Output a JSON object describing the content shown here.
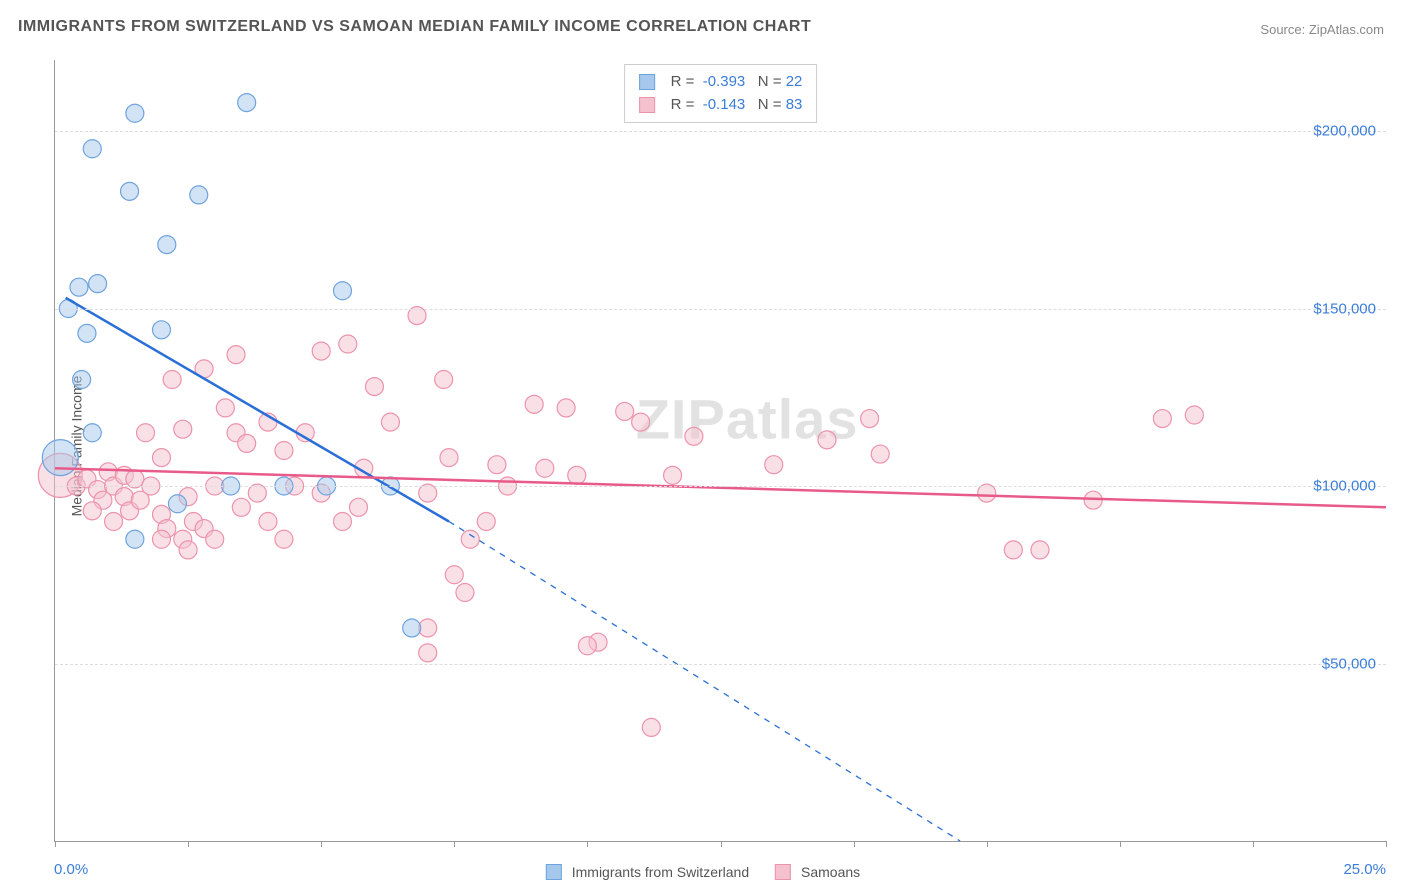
{
  "title": "IMMIGRANTS FROM SWITZERLAND VS SAMOAN MEDIAN FAMILY INCOME CORRELATION CHART",
  "source_label": "Source:",
  "source_name": "ZipAtlas.com",
  "ylabel": "Median Family Income",
  "watermark": "ZIPatlas",
  "chart": {
    "type": "scatter-correlation",
    "xlim": [
      0,
      25
    ],
    "ylim": [
      0,
      220000
    ],
    "x_start_label": "0.0%",
    "x_end_label": "25.0%",
    "y_ticks": [
      50000,
      100000,
      150000,
      200000
    ],
    "y_tick_labels": [
      "$50,000",
      "$100,000",
      "$150,000",
      "$200,000"
    ],
    "x_tick_positions": [
      0,
      2.5,
      5,
      7.5,
      10,
      12.5,
      15,
      17.5,
      20,
      22.5,
      25
    ],
    "grid_color": "#dddddd",
    "axis_color": "#999999",
    "background_color": "#ffffff",
    "tick_label_color": "#3b7dd8",
    "marker_radius": 9,
    "marker_opacity": 0.5,
    "line_width": 2.5
  },
  "series": [
    {
      "name": "Immigrants from Switzerland",
      "fill_color": "#a6c8ec",
      "stroke_color": "#6ea3de",
      "line_color": "#2a6fd6",
      "R": "-0.393",
      "N": "22",
      "trend": {
        "x1": 0.2,
        "y1": 153000,
        "x2": 7.4,
        "y2": 90000,
        "dash_to_x": 17.0,
        "dash_to_y": 0
      },
      "points": [
        {
          "x": 1.5,
          "y": 205000
        },
        {
          "x": 0.7,
          "y": 195000
        },
        {
          "x": 3.6,
          "y": 208000
        },
        {
          "x": 1.4,
          "y": 183000
        },
        {
          "x": 2.7,
          "y": 182000
        },
        {
          "x": 2.1,
          "y": 168000
        },
        {
          "x": 0.45,
          "y": 156000
        },
        {
          "x": 0.8,
          "y": 157000
        },
        {
          "x": 0.25,
          "y": 150000
        },
        {
          "x": 0.6,
          "y": 143000
        },
        {
          "x": 2.0,
          "y": 144000
        },
        {
          "x": 5.4,
          "y": 155000
        },
        {
          "x": 0.5,
          "y": 130000
        },
        {
          "x": 0.7,
          "y": 115000
        },
        {
          "x": 0.1,
          "y": 108000,
          "r": 18
        },
        {
          "x": 2.3,
          "y": 95000
        },
        {
          "x": 1.5,
          "y": 85000
        },
        {
          "x": 3.3,
          "y": 100000
        },
        {
          "x": 4.3,
          "y": 100000
        },
        {
          "x": 5.1,
          "y": 100000
        },
        {
          "x": 6.3,
          "y": 100000
        },
        {
          "x": 6.7,
          "y": 60000
        }
      ]
    },
    {
      "name": "Samoans",
      "fill_color": "#f4c2cf",
      "stroke_color": "#ec93ab",
      "line_color": "#e85a8a",
      "R": "-0.143",
      "N": "83",
      "trend": {
        "x1": 0,
        "y1": 105000,
        "x2": 25,
        "y2": 94000
      },
      "points": [
        {
          "x": 0.1,
          "y": 103000,
          "r": 22
        },
        {
          "x": 0.4,
          "y": 100000
        },
        {
          "x": 0.6,
          "y": 102000
        },
        {
          "x": 0.8,
          "y": 99000
        },
        {
          "x": 1.0,
          "y": 104000
        },
        {
          "x": 0.9,
          "y": 96000
        },
        {
          "x": 1.1,
          "y": 100000
        },
        {
          "x": 1.3,
          "y": 97000
        },
        {
          "x": 1.4,
          "y": 93000
        },
        {
          "x": 1.1,
          "y": 90000
        },
        {
          "x": 1.3,
          "y": 103000
        },
        {
          "x": 0.7,
          "y": 93000
        },
        {
          "x": 1.6,
          "y": 96000
        },
        {
          "x": 1.7,
          "y": 115000
        },
        {
          "x": 2.0,
          "y": 92000
        },
        {
          "x": 2.1,
          "y": 88000
        },
        {
          "x": 2.4,
          "y": 116000
        },
        {
          "x": 2.0,
          "y": 108000
        },
        {
          "x": 2.2,
          "y": 130000
        },
        {
          "x": 2.8,
          "y": 133000
        },
        {
          "x": 3.0,
          "y": 100000
        },
        {
          "x": 2.6,
          "y": 90000
        },
        {
          "x": 2.8,
          "y": 88000
        },
        {
          "x": 2.5,
          "y": 97000
        },
        {
          "x": 2.4,
          "y": 85000
        },
        {
          "x": 2.0,
          "y": 85000
        },
        {
          "x": 3.2,
          "y": 122000
        },
        {
          "x": 3.4,
          "y": 115000
        },
        {
          "x": 3.5,
          "y": 94000
        },
        {
          "x": 3.6,
          "y": 112000
        },
        {
          "x": 3.4,
          "y": 137000
        },
        {
          "x": 4.0,
          "y": 118000
        },
        {
          "x": 3.8,
          "y": 98000
        },
        {
          "x": 4.0,
          "y": 90000
        },
        {
          "x": 4.3,
          "y": 85000
        },
        {
          "x": 4.3,
          "y": 110000
        },
        {
          "x": 4.7,
          "y": 115000
        },
        {
          "x": 5.0,
          "y": 138000
        },
        {
          "x": 5.5,
          "y": 140000
        },
        {
          "x": 5.0,
          "y": 98000
        },
        {
          "x": 5.4,
          "y": 90000
        },
        {
          "x": 5.7,
          "y": 94000
        },
        {
          "x": 6.0,
          "y": 128000
        },
        {
          "x": 6.3,
          "y": 118000
        },
        {
          "x": 6.8,
          "y": 148000
        },
        {
          "x": 7.0,
          "y": 98000
        },
        {
          "x": 7.0,
          "y": 60000
        },
        {
          "x": 7.4,
          "y": 108000
        },
        {
          "x": 7.3,
          "y": 130000
        },
        {
          "x": 7.8,
          "y": 85000
        },
        {
          "x": 7.5,
          "y": 75000
        },
        {
          "x": 7.0,
          "y": 53000
        },
        {
          "x": 7.7,
          "y": 70000
        },
        {
          "x": 8.1,
          "y": 90000
        },
        {
          "x": 8.3,
          "y": 106000
        },
        {
          "x": 8.5,
          "y": 100000
        },
        {
          "x": 9.0,
          "y": 123000
        },
        {
          "x": 9.2,
          "y": 105000
        },
        {
          "x": 9.6,
          "y": 122000
        },
        {
          "x": 9.8,
          "y": 103000
        },
        {
          "x": 10.2,
          "y": 56000
        },
        {
          "x": 10.0,
          "y": 55000
        },
        {
          "x": 10.7,
          "y": 121000
        },
        {
          "x": 11.0,
          "y": 118000
        },
        {
          "x": 11.2,
          "y": 32000
        },
        {
          "x": 11.6,
          "y": 103000
        },
        {
          "x": 12.0,
          "y": 114000
        },
        {
          "x": 13.5,
          "y": 106000
        },
        {
          "x": 14.5,
          "y": 113000
        },
        {
          "x": 15.3,
          "y": 119000
        },
        {
          "x": 15.5,
          "y": 109000
        },
        {
          "x": 17.5,
          "y": 98000
        },
        {
          "x": 18.0,
          "y": 82000
        },
        {
          "x": 18.5,
          "y": 82000
        },
        {
          "x": 19.5,
          "y": 96000
        },
        {
          "x": 20.8,
          "y": 119000
        },
        {
          "x": 21.4,
          "y": 120000
        },
        {
          "x": 2.5,
          "y": 82000
        },
        {
          "x": 3.0,
          "y": 85000
        },
        {
          "x": 1.5,
          "y": 102000
        },
        {
          "x": 1.8,
          "y": 100000
        },
        {
          "x": 4.5,
          "y": 100000
        },
        {
          "x": 5.8,
          "y": 105000
        }
      ]
    }
  ],
  "legend": {
    "series1_label": "Immigrants from Switzerland",
    "series2_label": "Samoans"
  },
  "stats_labels": {
    "R": "R =",
    "N": "N ="
  }
}
